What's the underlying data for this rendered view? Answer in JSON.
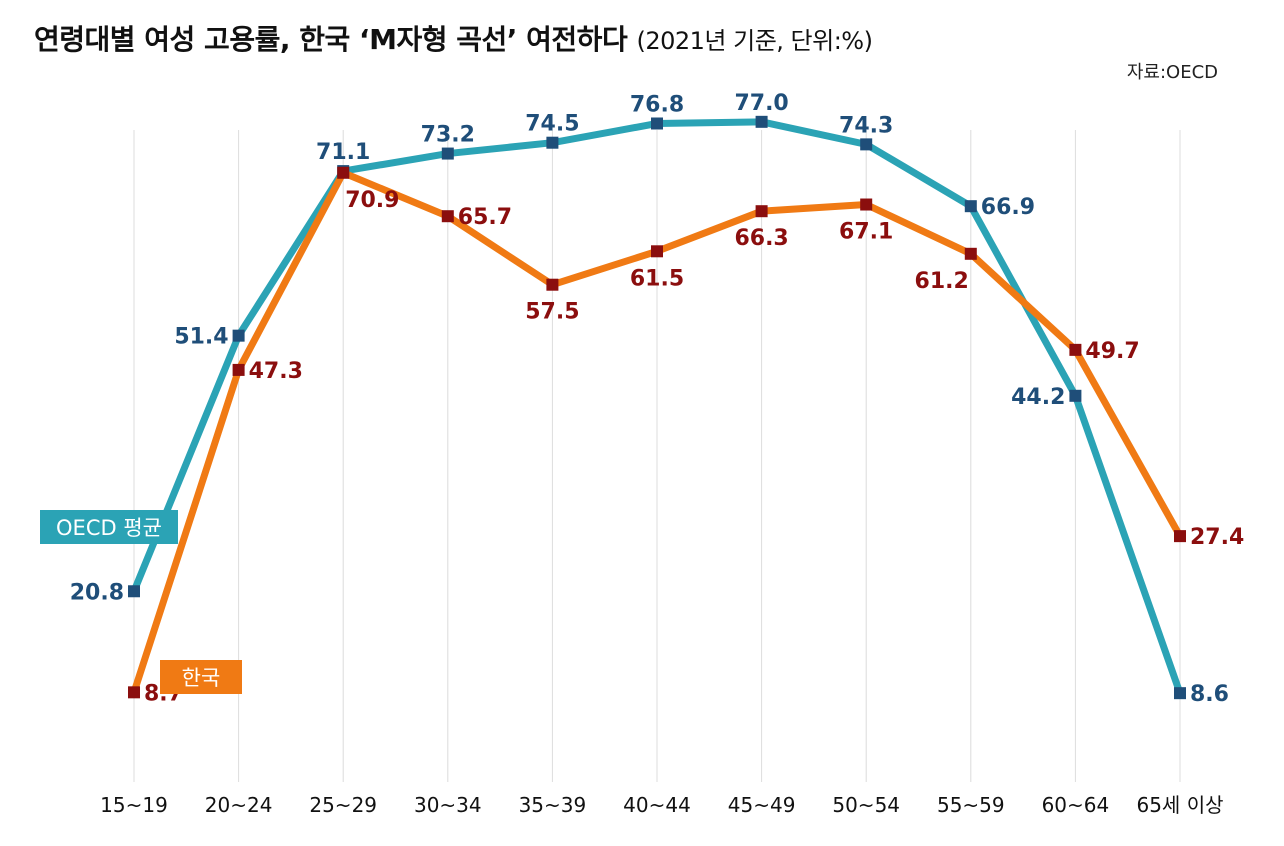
{
  "header": {
    "title": "연령대별 여성 고용률, 한국 ‘M자형 곡선’ 여전하다",
    "subtitle": "(2021년 기준, 단위:%)",
    "source": "자료:OECD"
  },
  "chart_data": {
    "type": "line",
    "title": "연령대별 여성 고용률, 한국 ‘M자형 곡선’ 여전하다",
    "subtitle": "(2021년 기준, 단위:%)",
    "xlabel": "",
    "ylabel": "",
    "categories": [
      "15~19",
      "20~24",
      "25~29",
      "30~34",
      "35~39",
      "40~44",
      "45~49",
      "50~54",
      "55~59",
      "60~64",
      "65세 이상"
    ],
    "ylim": [
      0,
      85
    ],
    "grid": "vertical",
    "series": [
      {
        "name": "OECD 평균",
        "color": "#2BA3B5",
        "marker_color": "#1F4E79",
        "label_color": "#1F4E79",
        "values": [
          20.8,
          51.4,
          71.1,
          73.2,
          74.5,
          76.8,
          77.0,
          74.3,
          66.9,
          44.2,
          8.6
        ]
      },
      {
        "name": "한국",
        "color": "#F07A14",
        "marker_color": "#8B0E0E",
        "label_color": "#8B0E0E",
        "values": [
          8.7,
          47.3,
          70.9,
          65.7,
          57.5,
          61.5,
          66.3,
          67.1,
          61.2,
          49.7,
          27.4
        ]
      }
    ]
  }
}
